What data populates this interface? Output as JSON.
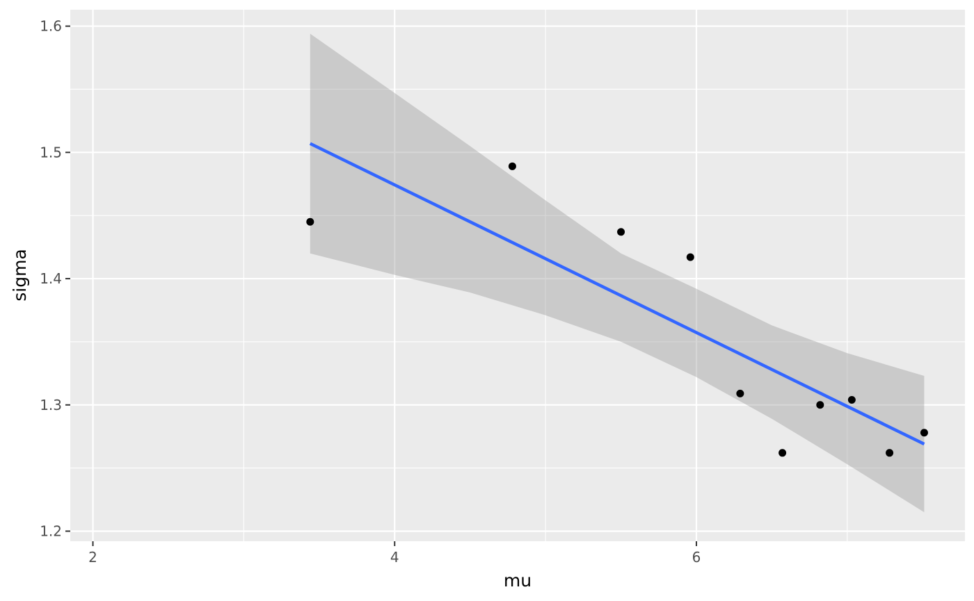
{
  "chart_data": {
    "type": "scatter",
    "xlabel": "mu",
    "ylabel": "sigma",
    "xlim": [
      1.85,
      7.78
    ],
    "ylim": [
      1.192,
      1.613
    ],
    "x_ticks": [
      2,
      4,
      6
    ],
    "y_ticks": [
      1.2,
      1.3,
      1.4,
      1.5,
      1.6
    ],
    "grid": true,
    "points": [
      {
        "x": 3.44,
        "y": 1.445
      },
      {
        "x": 4.78,
        "y": 1.489
      },
      {
        "x": 5.5,
        "y": 1.437
      },
      {
        "x": 5.96,
        "y": 1.417
      },
      {
        "x": 6.29,
        "y": 1.309
      },
      {
        "x": 6.57,
        "y": 1.262
      },
      {
        "x": 6.82,
        "y": 1.3
      },
      {
        "x": 7.03,
        "y": 1.304
      },
      {
        "x": 7.28,
        "y": 1.262
      },
      {
        "x": 7.51,
        "y": 1.278
      }
    ],
    "trend_line": {
      "x": [
        3.44,
        7.51
      ],
      "y": [
        1.507,
        1.269
      ]
    },
    "confidence_band": {
      "x": [
        3.44,
        4.0,
        4.5,
        5.0,
        5.5,
        6.0,
        6.5,
        7.0,
        7.51
      ],
      "upper": [
        1.594,
        1.547,
        1.505,
        1.462,
        1.42,
        1.392,
        1.363,
        1.341,
        1.323
      ],
      "lower": [
        1.42,
        1.403,
        1.389,
        1.371,
        1.35,
        1.322,
        1.289,
        1.253,
        1.215
      ]
    },
    "colors": {
      "panel": "#ebebeb",
      "grid": "#ffffff",
      "points": "#000000",
      "line": "#3366ff",
      "band": "#999999"
    }
  }
}
